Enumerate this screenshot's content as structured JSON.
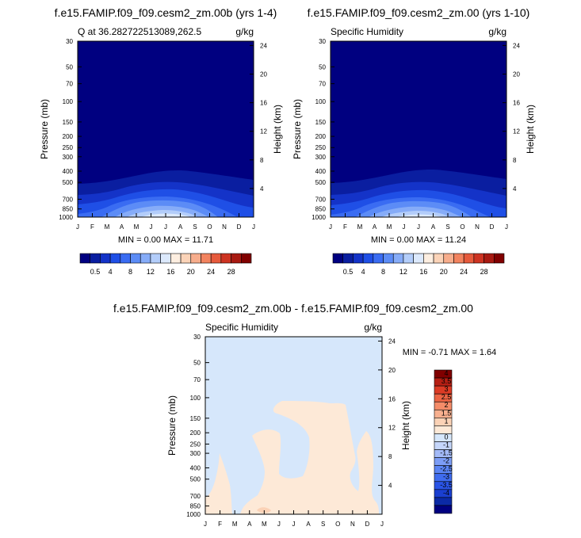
{
  "colors": {
    "abs_levels": [
      "#000080",
      "#0a1ea0",
      "#1433c8",
      "#1f4fe6",
      "#3a6cf2",
      "#5c8cf6",
      "#86acf8",
      "#b3cdfa",
      "#dce9fc",
      "#fdeee0",
      "#fbd3b8",
      "#f7ad8c",
      "#f2835f",
      "#e65a3c",
      "#cd3322",
      "#a81a12",
      "#800000"
    ],
    "diff_positive": "#fde9d7",
    "diff_zero": "#d6e7fb",
    "diff_levels": [
      "#000080",
      "#0b2aa6",
      "#1a3fd0",
      "#2a54e6",
      "#3f6cef",
      "#5a84f4",
      "#7c9df6",
      "#a3baf8",
      "#c5d6fa",
      "#d6e7fb",
      "#fde9d7",
      "#fbd2b6",
      "#f8b08f",
      "#f48c69",
      "#ec6444",
      "#dc3b25",
      "#b61f14",
      "#800000"
    ]
  },
  "panels": [
    {
      "title": "f.e15.FAMIP.f09_f09.cesm2_zm.00b (yrs 1-4)",
      "subtitle": "Q at 36.282722513089,262.5",
      "units": "g/kg",
      "ylabel": "Pressure (mb)",
      "ylabel_right": "Height (km)",
      "minmax": "MIN =    0.00 MAX =  11.71"
    },
    {
      "title": "f.e15.FAMIP.f09_f09.cesm2_zm.00 (yrs 1-10)",
      "subtitle": "Specific Humidity",
      "units": "g/kg",
      "ylabel": "Pressure (mb)",
      "ylabel_right": "Height (km)",
      "minmax": "MIN =    0.00 MAX =  11.24"
    },
    {
      "title": "f.e15.FAMIP.f09_f09.cesm2_zm.00b - f.e15.FAMIP.f09_f09.cesm2_zm.00",
      "subtitle": "Specific Humidity",
      "units": "g/kg",
      "ylabel": "Pressure (mb)",
      "ylabel_right": "Height (km)",
      "minmax": "MIN =  -0.71 MAX =   1.64"
    }
  ],
  "chart_data": {
    "type": "heatmap",
    "x_tick_labels": [
      "J",
      "F",
      "M",
      "A",
      "M",
      "J",
      "J",
      "A",
      "S",
      "O",
      "N",
      "D",
      "J"
    ],
    "y_tick_labels": [
      "30",
      "50",
      "70",
      "100",
      "150",
      "200",
      "250",
      "300",
      "400",
      "500",
      "700",
      "850",
      "1000"
    ],
    "y_tick_values": [
      30,
      50,
      70,
      100,
      150,
      200,
      250,
      300,
      400,
      500,
      700,
      850,
      1000
    ],
    "y_right_tick_labels": [
      "24",
      "20",
      "16",
      "12",
      "8",
      "4"
    ],
    "y_right_tick_values": [
      24,
      20,
      16,
      12,
      8,
      4
    ],
    "y_axis_scale": "log",
    "ylim": [
      1000,
      30
    ],
    "abs_colorbar_labels": [
      "0.5",
      "4",
      "8",
      "12",
      "16",
      "20",
      "24",
      "28"
    ],
    "diff_colorbar_labels": [
      "4",
      "3.5",
      "3",
      "2.5",
      "2",
      "1.5",
      "1",
      "0",
      "-1",
      "-1.5",
      "-2",
      "-2.5",
      "-3",
      "-3.5",
      "-4"
    ]
  }
}
